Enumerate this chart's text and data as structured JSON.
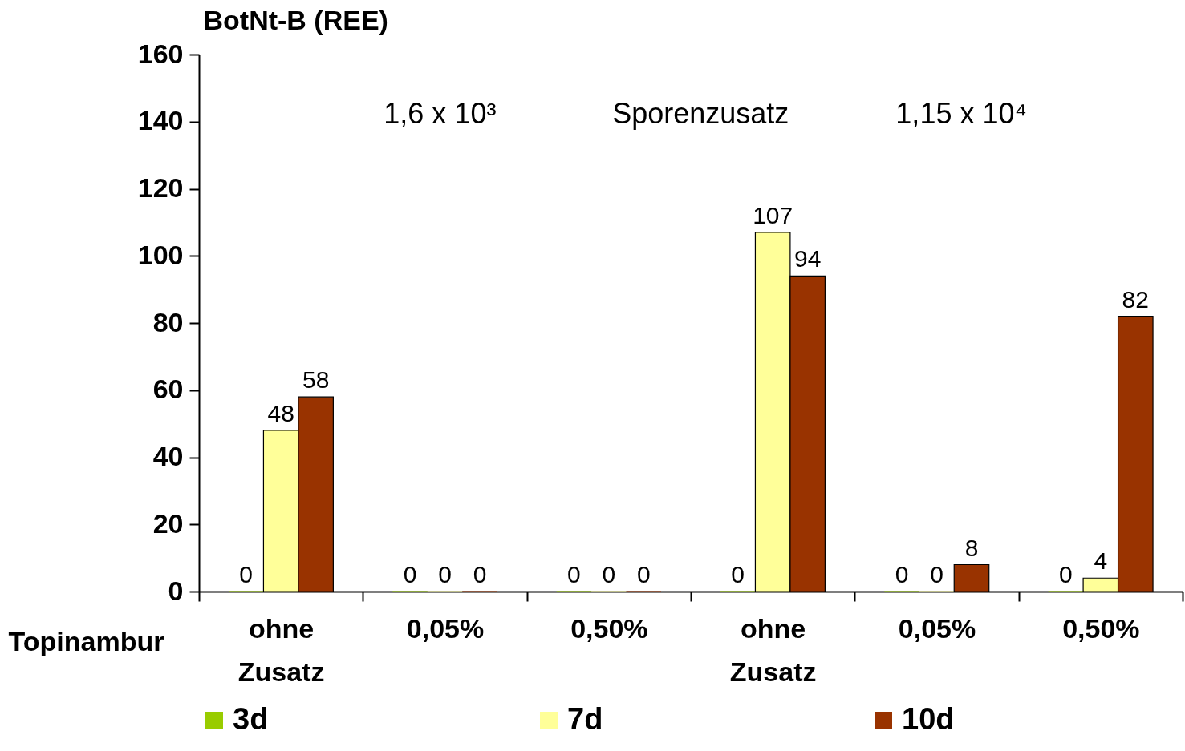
{
  "chart_data": {
    "type": "bar",
    "ylabel": "BotNt-B (REE)",
    "xlabel": "Topinambur",
    "categories": [
      "ohne Zusatz",
      "0,05%",
      "0,50%",
      "ohne Zusatz",
      "0,05%",
      "0,50%"
    ],
    "series": [
      {
        "name": "3d",
        "color": "#99cc00",
        "values": [
          0,
          0,
          0,
          0,
          0,
          0
        ]
      },
      {
        "name": "7d",
        "color": "#ffff99",
        "values": [
          48,
          0,
          0,
          107,
          0,
          4
        ]
      },
      {
        "name": "10d",
        "color": "#993300",
        "values": [
          58,
          0,
          0,
          94,
          8,
          82
        ]
      }
    ],
    "ylim": [
      0,
      160
    ],
    "yticks": [
      0,
      20,
      40,
      60,
      80,
      100,
      120,
      140,
      160
    ],
    "data_labels": true,
    "grid": false,
    "legend": "bottom",
    "annotations": [
      "1,6 x 10³",
      "Sporenzusatz",
      "1,15 x 10⁴"
    ]
  }
}
